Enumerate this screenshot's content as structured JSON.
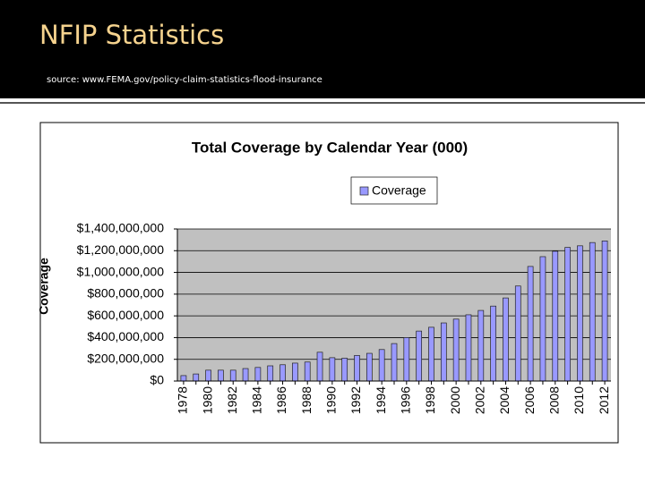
{
  "slide": {
    "title": "NFIP Statistics",
    "source": "source: www.FEMA.gov/policy-claim-statistics-flood-insurance"
  },
  "chart_data": {
    "type": "bar",
    "title": "Total Coverage by Calendar Year (000)",
    "y_label": "Coverage",
    "categories": [
      "1978",
      null,
      "1980",
      null,
      "1982",
      null,
      "1984",
      null,
      "1986",
      null,
      "1988",
      null,
      "1990",
      null,
      "1992",
      null,
      "1994",
      null,
      "1996",
      null,
      "1998",
      null,
      "2000",
      null,
      "2002",
      null,
      "2004",
      null,
      "2006",
      null,
      "2008",
      null,
      "2010",
      null,
      "2012"
    ],
    "series": [
      {
        "name": "Coverage",
        "color": "#9999ff",
        "values": [
          50000000,
          65000000,
          100000000,
          100000000,
          100000000,
          115000000,
          125000000,
          140000000,
          150000000,
          165000000,
          175000000,
          265000000,
          215000000,
          210000000,
          235000000,
          255000000,
          290000000,
          345000000,
          400000000,
          460000000,
          495000000,
          535000000,
          570000000,
          610000000,
          650000000,
          690000000,
          765000000,
          875000000,
          1055000000,
          1145000000,
          1195000000,
          1230000000,
          1245000000,
          1275000000,
          1290000000
        ]
      }
    ],
    "ylim": [
      0,
      1400000000
    ],
    "yticks": [
      {
        "value": 0,
        "label": "$0"
      },
      {
        "value": 200000000,
        "label": "$200,000,000"
      },
      {
        "value": 400000000,
        "label": "$400,000,000"
      },
      {
        "value": 600000000,
        "label": "$600,000,000"
      },
      {
        "value": 800000000,
        "label": "$800,000,000"
      },
      {
        "value": 1000000000,
        "label": "$1,000,000,000"
      },
      {
        "value": 1200000000,
        "label": "$1,200,000,000"
      },
      {
        "value": 1400000000,
        "label": "$1,400,000,000"
      }
    ],
    "grid": true,
    "legend": "top"
  }
}
